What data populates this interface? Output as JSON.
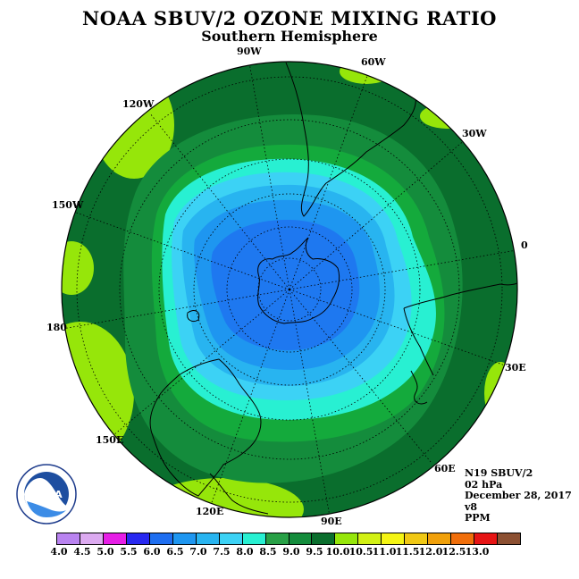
{
  "header": {
    "title": "NOAA SBUV/2 OZONE MIXING RATIO",
    "subtitle": "Southern Hemisphere"
  },
  "longitude_labels": {
    "lon_90w": "90W",
    "lon_60w": "60W",
    "lon_120w": "120W",
    "lon_30w": "30W",
    "lon_150w": "150W",
    "lon_0": "0",
    "lon_180": "180",
    "lon_30e": "30E",
    "lon_150e": "150E",
    "lon_60e": "60E",
    "lon_120e": "120E",
    "lon_90e": "90E"
  },
  "info": {
    "satellite": "N19 SBUV/2",
    "pressure": "02 hPa",
    "date": "December 28, 2017",
    "version": "v8",
    "units": "PPM"
  },
  "logo": {
    "text": "NOAA"
  },
  "colorbar": {
    "ticks": [
      "4.0",
      "4.5",
      "5.0",
      "5.5",
      "6.0",
      "6.5",
      "7.0",
      "7.5",
      "8.0",
      "8.5",
      "9.0",
      "9.5",
      "10.0",
      "10.5",
      "11.0",
      "11.5",
      "12.0",
      "12.5",
      "13.0"
    ],
    "colors": [
      "#b983f0",
      "#dcaaf0",
      "#e61ee6",
      "#2828f0",
      "#1e6ef0",
      "#1e96f0",
      "#28b4f0",
      "#3cd2f5",
      "#28f0d2",
      "#28a046",
      "#148c3c",
      "#0a6e2d",
      "#96e60a",
      "#d2f014",
      "#f5f514",
      "#f0c814",
      "#f0a00a",
      "#f06e0a",
      "#e61414",
      "#8c5032"
    ]
  },
  "map_colors": {
    "band_60": "#1e78f0",
    "band_65": "#1e96f0",
    "band_70": "#28b4f0",
    "band_75": "#3cd2f5",
    "band_80": "#28f0d2",
    "band_85": "#14aa3c",
    "band_90": "#148c3c",
    "band_95": "#0a6e2d",
    "band_yg": "#96e60a"
  }
}
